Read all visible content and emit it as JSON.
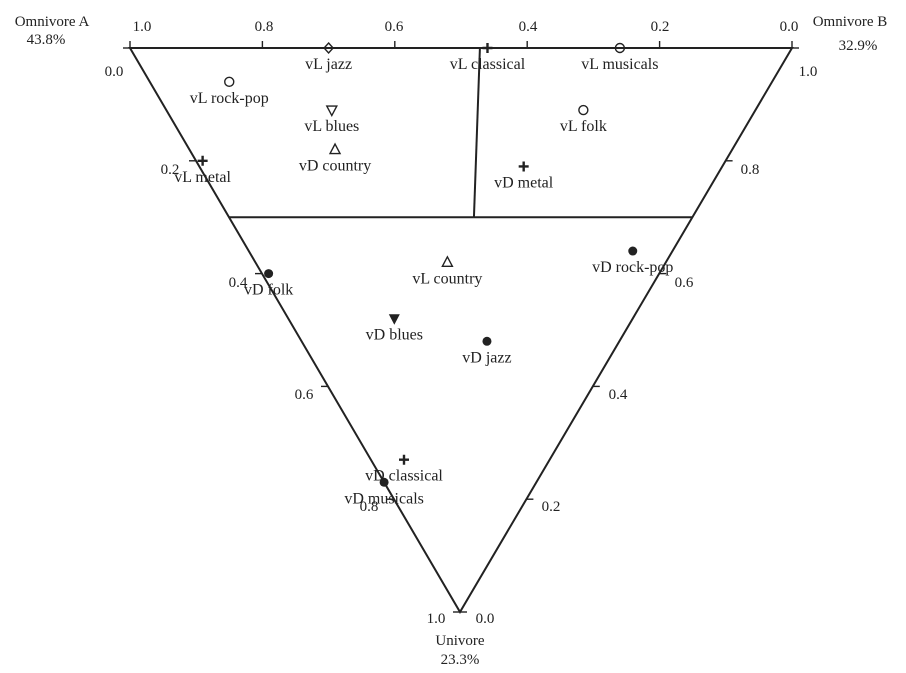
{
  "chart_data": {
    "type": "scatter",
    "subtype": "ternary",
    "title": "",
    "grid": false,
    "vertices": [
      {
        "id": "A",
        "name": "Omnivore A",
        "share": "43.8%"
      },
      {
        "id": "B",
        "name": "Omnivore B",
        "share": "32.9%"
      },
      {
        "id": "U",
        "name": "Univore",
        "share": "23.3%"
      }
    ],
    "axes": {
      "top": {
        "ticks": [
          "1.0",
          "0.8",
          "0.6",
          "0.4",
          "0.2",
          "0.0"
        ]
      },
      "left": {
        "ticks": [
          "0.0",
          "0.2",
          "0.4",
          "0.6",
          "0.8",
          "1.0"
        ]
      },
      "right": {
        "ticks": [
          "1.0",
          "0.8",
          "0.6",
          "0.4",
          "0.2",
          "0.0"
        ]
      }
    },
    "region_center": {
      "A": 0.33,
      "B": 0.37,
      "U": 0.3
    },
    "points": [
      {
        "label": "vL jazz",
        "A": 0.7,
        "B": 0.3,
        "U": 0.0,
        "marker": "diamond-open"
      },
      {
        "label": "vL classical",
        "A": 0.46,
        "B": 0.54,
        "U": 0.0,
        "marker": "plus"
      },
      {
        "label": "vL musicals",
        "A": 0.26,
        "B": 0.74,
        "U": 0.0,
        "marker": "circle-open"
      },
      {
        "label": "vL rock-pop",
        "A": 0.82,
        "B": 0.12,
        "U": 0.06,
        "marker": "circle-open"
      },
      {
        "label": "vL blues",
        "A": 0.64,
        "B": 0.25,
        "U": 0.11,
        "marker": "triangle-down-open"
      },
      {
        "label": "vL folk",
        "A": 0.26,
        "B": 0.63,
        "U": 0.11,
        "marker": "circle-open"
      },
      {
        "label": "vD country",
        "A": 0.6,
        "B": 0.22,
        "U": 0.18,
        "marker": "triangle-up-open"
      },
      {
        "label": "vL metal",
        "A": 0.79,
        "B": 0.01,
        "U": 0.2,
        "marker": "plus"
      },
      {
        "label": "vD metal",
        "A": 0.3,
        "B": 0.49,
        "U": 0.21,
        "marker": "plus"
      },
      {
        "label": "vD rock-pop",
        "A": 0.06,
        "B": 0.58,
        "U": 0.36,
        "marker": "circle"
      },
      {
        "label": "vL country",
        "A": 0.33,
        "B": 0.29,
        "U": 0.38,
        "marker": "triangle-up-open"
      },
      {
        "label": "vD folk",
        "A": 0.59,
        "B": 0.01,
        "U": 0.4,
        "marker": "circle"
      },
      {
        "label": "vD blues",
        "A": 0.36,
        "B": 0.16,
        "U": 0.48,
        "marker": "triangle-down"
      },
      {
        "label": "vD jazz",
        "A": 0.2,
        "B": 0.28,
        "U": 0.52,
        "marker": "circle"
      },
      {
        "label": "vD classical",
        "A": 0.22,
        "B": 0.05,
        "U": 0.73,
        "marker": "plus"
      },
      {
        "label": "vD musicals",
        "A": 0.23,
        "B": 0.0,
        "U": 0.77,
        "marker": "circle"
      }
    ]
  }
}
